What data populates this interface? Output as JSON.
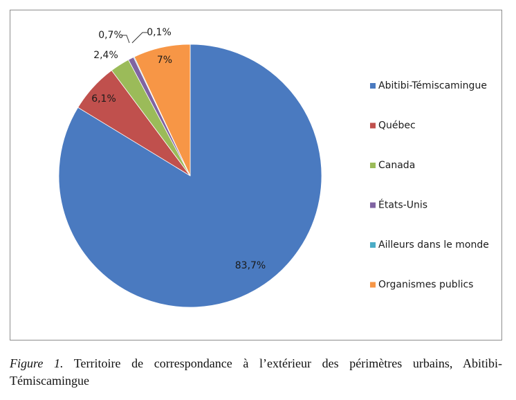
{
  "chart_data": {
    "type": "pie",
    "categories": [
      "Abitibi-Témiscamingue",
      "Québec",
      "Canada",
      "États-Unis",
      "Ailleurs dans le monde",
      "Organismes publics"
    ],
    "values": [
      83.7,
      6.1,
      2.4,
      0.7,
      0.1,
      7
    ],
    "value_labels": [
      "83,7%",
      "6,1%",
      "2,4%",
      "0,7%",
      "0,1%",
      "7%"
    ],
    "colors": [
      "#4a7ac0",
      "#c0504d",
      "#9bbb59",
      "#8064a2",
      "#4bacc6",
      "#f79646"
    ],
    "legend": "right"
  },
  "caption": {
    "label": "Figure 1.",
    "text": "Territoire de correspondance à l’extérieur des périmètres urbains, Abitibi-Témiscamingue"
  }
}
